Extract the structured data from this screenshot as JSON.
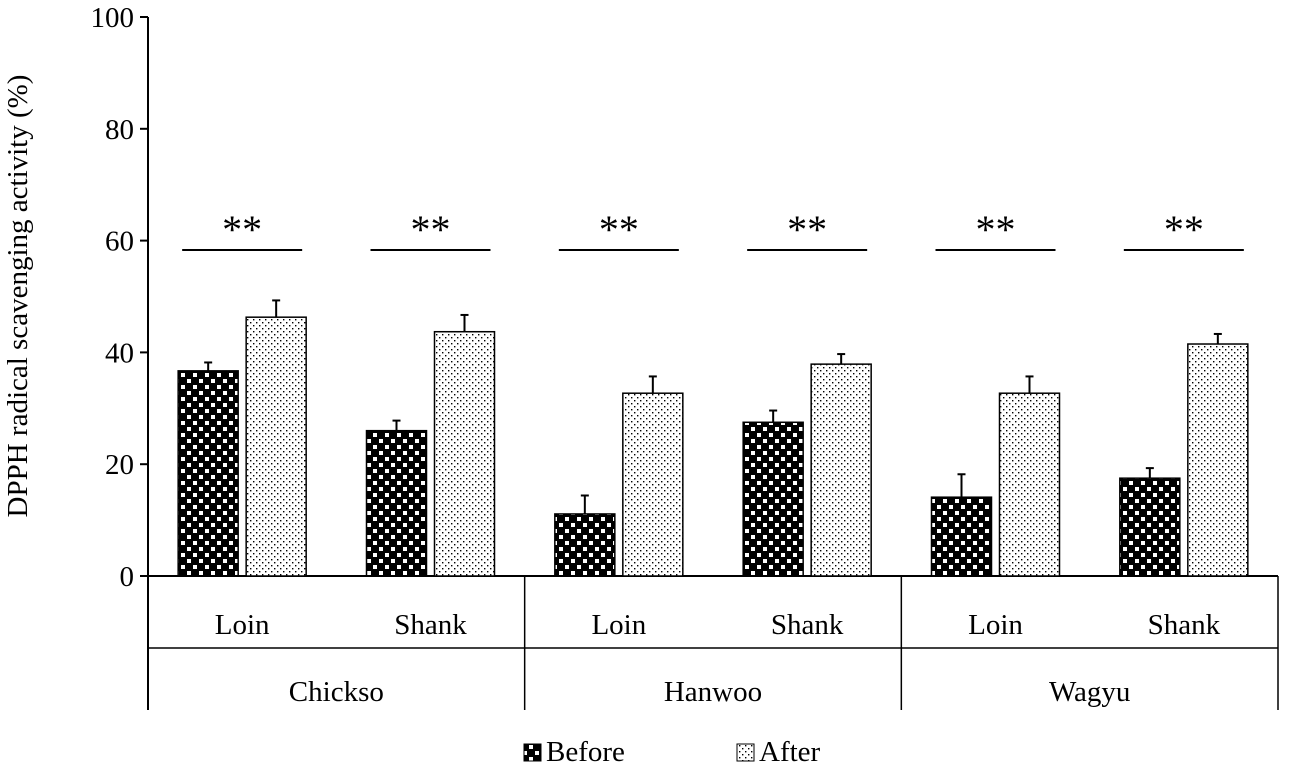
{
  "chart_data": {
    "type": "bar",
    "ylabel": "DPPH radical scavenging activity (%)",
    "ylim": [
      0,
      100
    ],
    "yticks": [
      "0",
      "20",
      "40",
      "60",
      "80",
      "100"
    ],
    "groups": [
      {
        "name": "Chickso",
        "categories": [
          "Loin",
          "Shank"
        ]
      },
      {
        "name": "Hanwoo",
        "categories": [
          "Loin",
          "Shank"
        ]
      },
      {
        "name": "Wagyu",
        "categories": [
          "Loin",
          "Shank"
        ]
      }
    ],
    "categories": [
      "Loin",
      "Shank",
      "Loin",
      "Shank",
      "Loin",
      "Shank"
    ],
    "series": [
      {
        "name": "Before",
        "values": [
          36.7,
          26.0,
          11.1,
          27.5,
          14.1,
          17.5
        ],
        "errors": [
          1.5,
          1.8,
          3.3,
          2.1,
          4.1,
          1.8
        ]
      },
      {
        "name": "After",
        "values": [
          46.3,
          43.7,
          32.7,
          37.9,
          32.7,
          41.5
        ],
        "errors": [
          3.0,
          3.0,
          3.0,
          1.8,
          3.0,
          1.8
        ]
      }
    ],
    "annotations": [
      "**",
      "**",
      "**",
      "**",
      "**",
      "**"
    ],
    "legend_position": "bottom",
    "grid": false
  }
}
